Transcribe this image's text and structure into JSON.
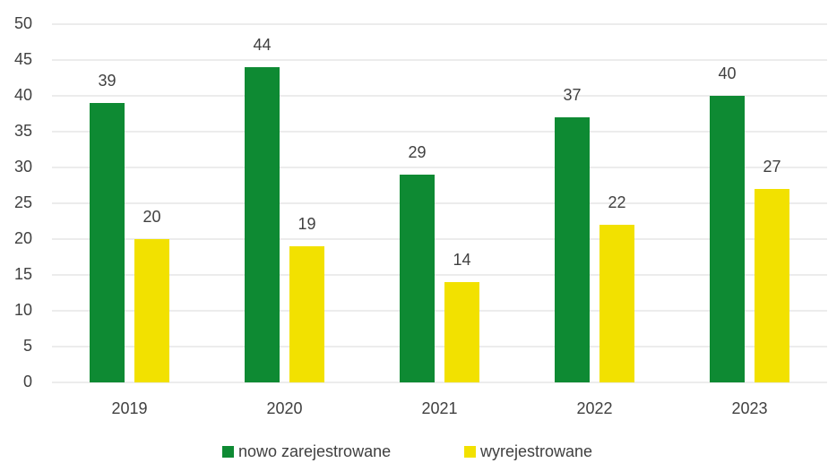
{
  "chart_data": {
    "type": "bar",
    "categories": [
      "2019",
      "2020",
      "2021",
      "2022",
      "2023"
    ],
    "series": [
      {
        "name": "nowo zarejestrowane",
        "color": "#0e8a33",
        "values": [
          39,
          44,
          29,
          37,
          40
        ]
      },
      {
        "name": "wyrejestrowane",
        "color": "#f2e100",
        "values": [
          20,
          19,
          14,
          22,
          27
        ]
      }
    ],
    "ylim": [
      0,
      50
    ],
    "yticks": [
      0,
      5,
      10,
      15,
      20,
      25,
      30,
      35,
      40,
      45,
      50
    ],
    "grid": true,
    "legend": "bottom"
  }
}
